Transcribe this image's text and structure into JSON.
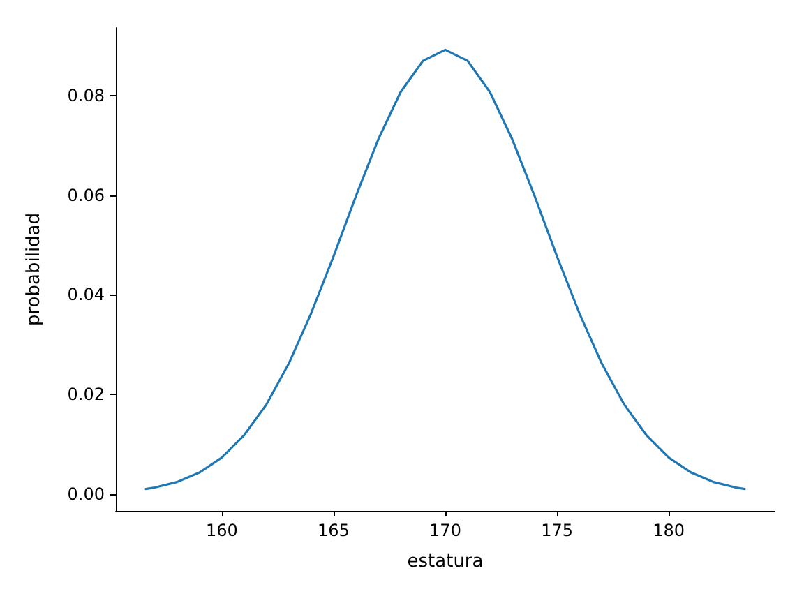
{
  "chart_data": {
    "type": "line",
    "xlabel": "estatura",
    "ylabel": "probabilidad",
    "x": [
      156.6,
      157,
      158,
      159,
      160,
      161,
      162,
      163,
      164,
      165,
      166,
      167,
      168,
      169,
      170,
      171,
      172,
      173,
      174,
      175,
      176,
      177,
      178,
      179,
      180,
      181,
      182,
      183,
      183.4
    ],
    "series": [
      {
        "color": "#1f77b4",
        "values": [
          0.001,
          0.0013,
          0.0024,
          0.0043,
          0.0073,
          0.0118,
          0.018,
          0.0262,
          0.0363,
          0.0477,
          0.0598,
          0.0712,
          0.0807,
          0.087,
          0.0892,
          0.087,
          0.0807,
          0.0712,
          0.0598,
          0.0477,
          0.0363,
          0.0262,
          0.018,
          0.0118,
          0.0073,
          0.0043,
          0.0024,
          0.0013,
          0.001
        ]
      }
    ],
    "xlim": [
      155.26,
      184.74
    ],
    "ylim": [
      -0.0034,
      0.0936
    ],
    "xticks": [
      160,
      165,
      170,
      175,
      180
    ],
    "yticks": [
      {
        "value": 0,
        "label": "0.00"
      },
      {
        "value": 0.02,
        "label": "0.02"
      },
      {
        "value": 0.04,
        "label": "0.04"
      },
      {
        "value": 0.06,
        "label": "0.06"
      },
      {
        "value": 0.08,
        "label": "0.08"
      }
    ],
    "grid": false,
    "marker": "none",
    "line_style": "solid"
  }
}
